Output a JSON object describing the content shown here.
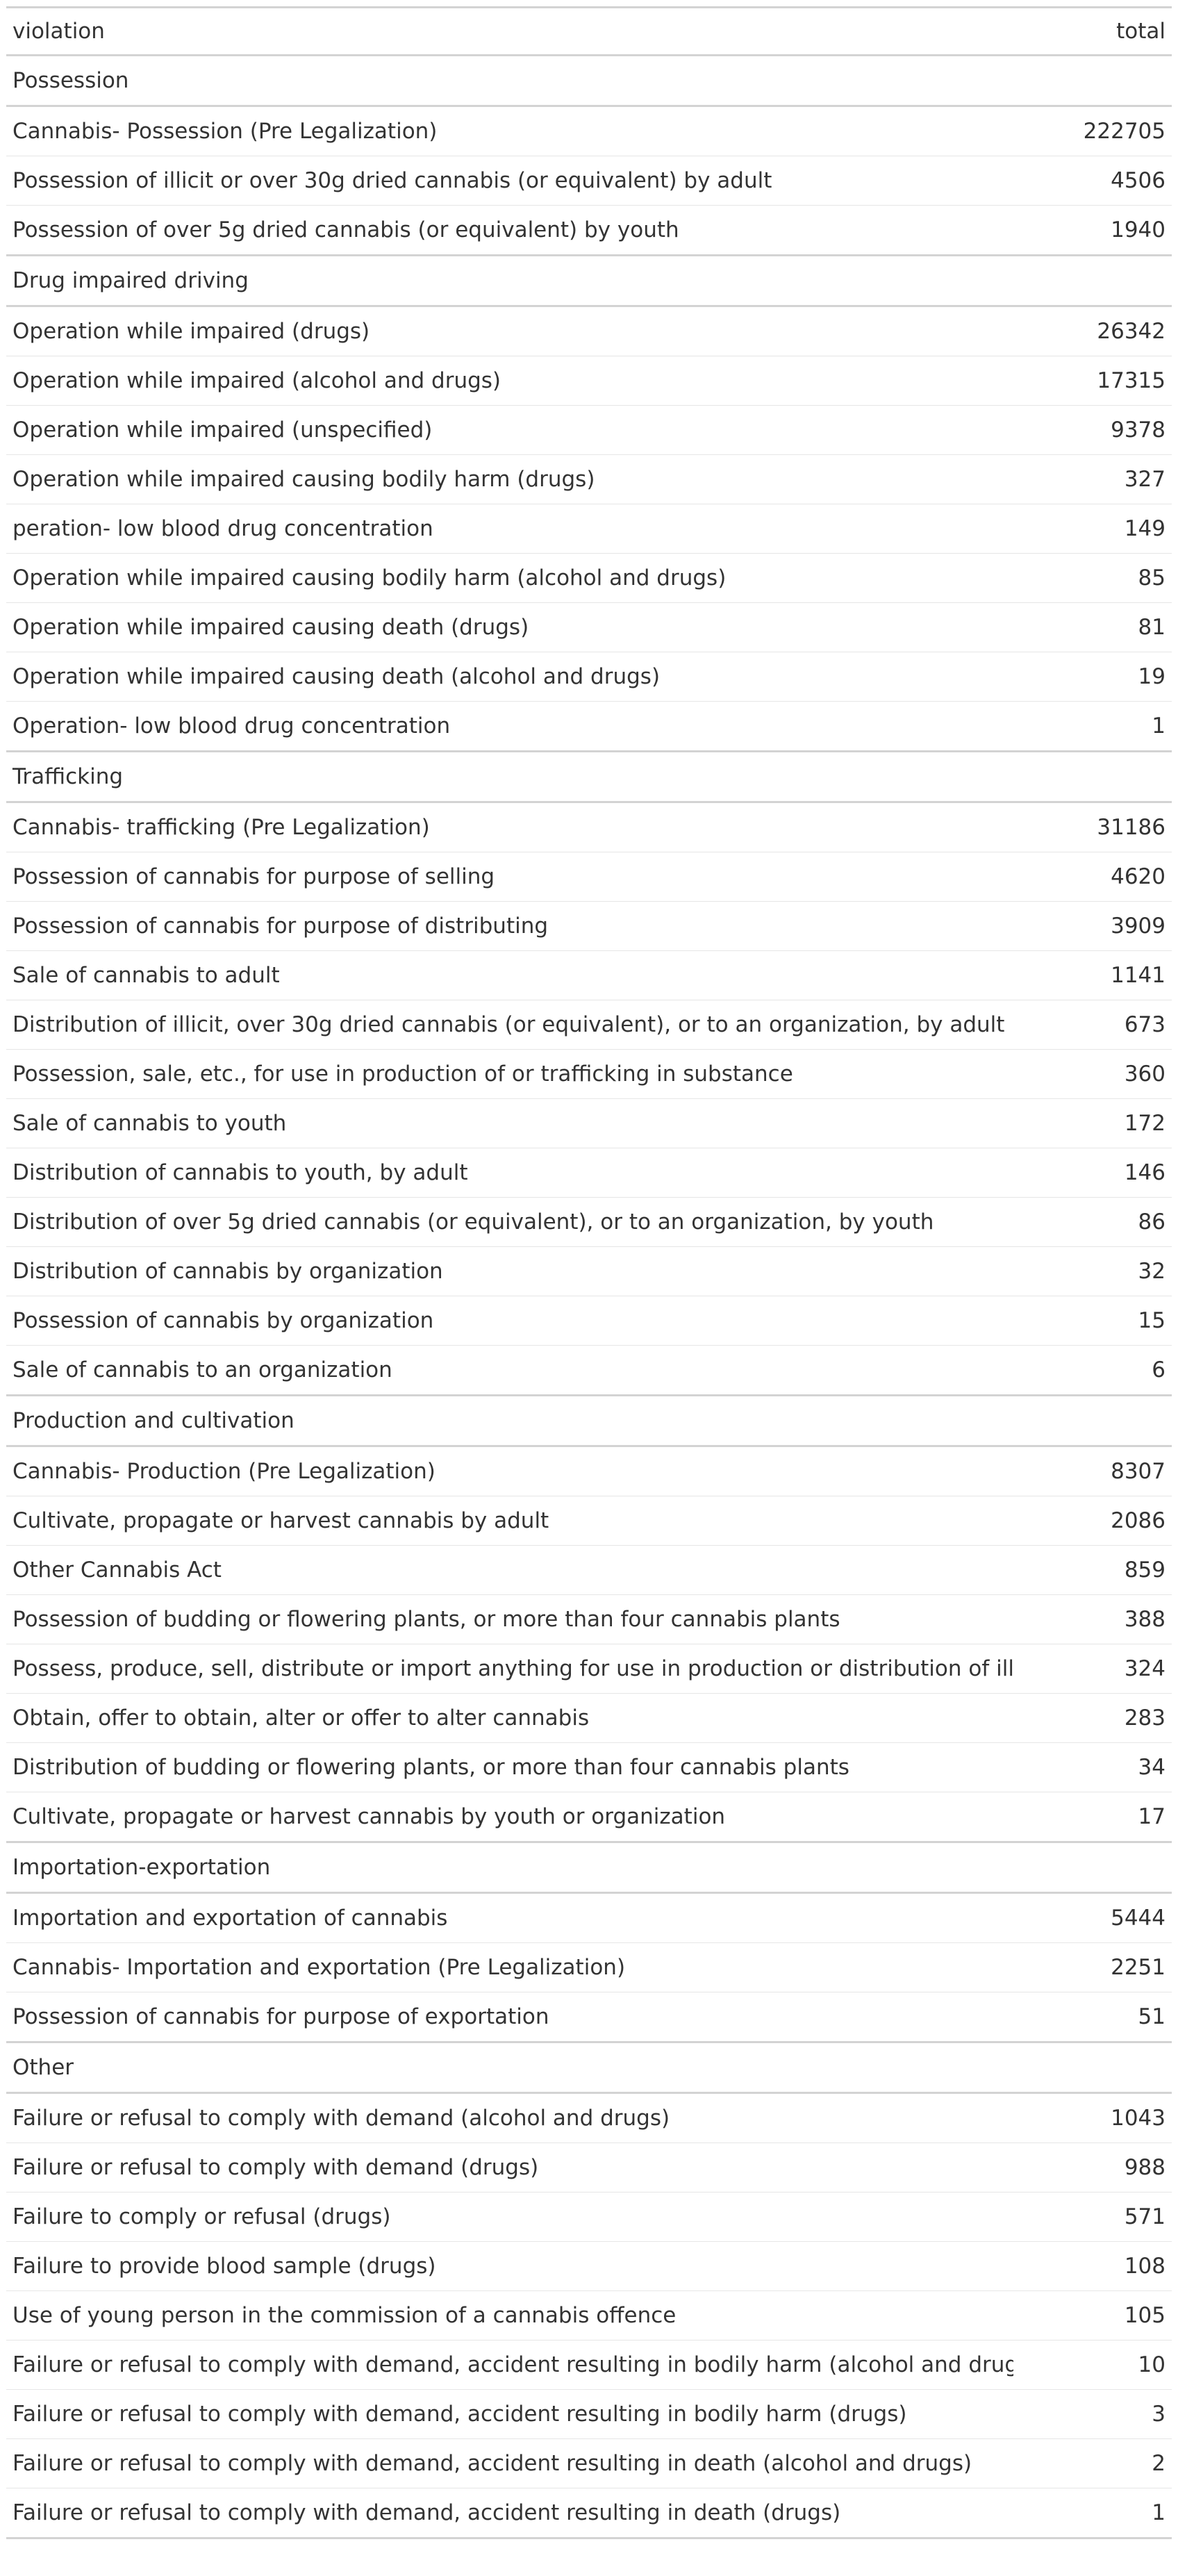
{
  "chart_data": {
    "type": "table",
    "columns": [
      "violation",
      "total"
    ],
    "groups": [
      {
        "name": "Possession",
        "rows": [
          {
            "violation": "Cannabis- Possession (Pre Legalization)",
            "total": 222705
          },
          {
            "violation": "Possession of illicit or over 30g dried cannabis (or equivalent) by adult",
            "total": 4506
          },
          {
            "violation": "Possession of over 5g dried cannabis (or equivalent) by youth",
            "total": 1940
          }
        ]
      },
      {
        "name": "Drug impaired driving",
        "rows": [
          {
            "violation": "Operation while impaired (drugs)",
            "total": 26342
          },
          {
            "violation": "Operation while impaired (alcohol and drugs)",
            "total": 17315
          },
          {
            "violation": "Operation while impaired (unspecified)",
            "total": 9378
          },
          {
            "violation": "Operation while impaired causing bodily harm (drugs)",
            "total": 327
          },
          {
            "violation": "peration- low blood drug concentration",
            "total": 149
          },
          {
            "violation": "Operation while impaired causing bodily harm (alcohol and drugs)",
            "total": 85
          },
          {
            "violation": "Operation while impaired causing death (drugs)",
            "total": 81
          },
          {
            "violation": "Operation while impaired causing death (alcohol and drugs)",
            "total": 19
          },
          {
            "violation": "Operation- low blood drug concentration",
            "total": 1
          }
        ]
      },
      {
        "name": "Trafficking",
        "rows": [
          {
            "violation": "Cannabis- trafficking (Pre Legalization)",
            "total": 31186
          },
          {
            "violation": "Possession of cannabis for purpose of selling",
            "total": 4620
          },
          {
            "violation": "Possession of cannabis for purpose of distributing",
            "total": 3909
          },
          {
            "violation": "Sale of cannabis to adult",
            "total": 1141
          },
          {
            "violation": "Distribution of illicit, over 30g dried cannabis (or equivalent), or to an organization, by adult",
            "total": 673
          },
          {
            "violation": "Possession, sale, etc., for use in production of or trafficking in substance",
            "total": 360
          },
          {
            "violation": "Sale of cannabis to youth",
            "total": 172
          },
          {
            "violation": "Distribution of cannabis to youth, by adult",
            "total": 146
          },
          {
            "violation": "Distribution of over 5g dried cannabis (or equivalent), or to an organization, by youth",
            "total": 86
          },
          {
            "violation": "Distribution of cannabis by organization",
            "total": 32
          },
          {
            "violation": "Possession of cannabis by organization",
            "total": 15
          },
          {
            "violation": "Sale of cannabis to an organization",
            "total": 6
          }
        ]
      },
      {
        "name": "Production and cultivation",
        "rows": [
          {
            "violation": "Cannabis- Production (Pre Legalization)",
            "total": 8307
          },
          {
            "violation": "Cultivate, propagate or harvest cannabis by adult",
            "total": 2086
          },
          {
            "violation": "Other Cannabis Act",
            "total": 859
          },
          {
            "violation": "Possession of budding or flowering plants, or more than four cannabis plants",
            "total": 388
          },
          {
            "violation": "Possess, produce, sell, distribute or import anything for use in production or distribution of illicit cannabis",
            "total": 324
          },
          {
            "violation": "Obtain, offer to obtain, alter or offer to alter cannabis",
            "total": 283
          },
          {
            "violation": "Distribution of budding or flowering plants, or more than four cannabis plants",
            "total": 34
          },
          {
            "violation": "Cultivate, propagate or harvest cannabis by youth or organization",
            "total": 17
          }
        ]
      },
      {
        "name": "Importation-exportation",
        "rows": [
          {
            "violation": "Importation and exportation of cannabis",
            "total": 5444
          },
          {
            "violation": "Cannabis- Importation and exportation (Pre Legalization)",
            "total": 2251
          },
          {
            "violation": "Possession of cannabis for purpose of exportation",
            "total": 51
          }
        ]
      },
      {
        "name": "Other",
        "rows": [
          {
            "violation": "Failure or refusal to comply with demand (alcohol and drugs)",
            "total": 1043
          },
          {
            "violation": "Failure or refusal to comply with demand (drugs)",
            "total": 988
          },
          {
            "violation": "Failure to comply or refusal (drugs)",
            "total": 571
          },
          {
            "violation": "Failure to provide blood sample (drugs)",
            "total": 108
          },
          {
            "violation": "Use of young person in the commission of a cannabis offence",
            "total": 105
          },
          {
            "violation": "Failure or refusal to comply with demand, accident resulting in bodily harm (alcohol and drugs)",
            "total": 10
          },
          {
            "violation": "Failure or refusal to comply with demand, accident resulting in bodily harm (drugs)",
            "total": 3
          },
          {
            "violation": "Failure or refusal to comply with demand, accident resulting in death (alcohol and drugs)",
            "total": 2
          },
          {
            "violation": "Failure or refusal to comply with demand, accident resulting in death (drugs)",
            "total": 1
          }
        ]
      }
    ]
  }
}
